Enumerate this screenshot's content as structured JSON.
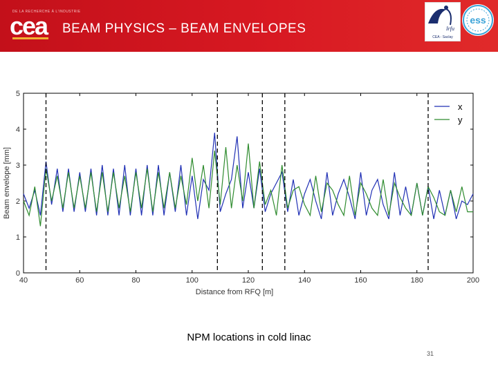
{
  "header": {
    "org_line": "DE LA RECHERCHE À L'INDUSTRIE",
    "logo_text": "cea",
    "title": "BEAM PHYSICS – BEAM ENVELOPES",
    "partner_logo_1": {
      "text": "Irfu",
      "subtext": "CEA - Saclay",
      "icon": "irfu-logo"
    },
    "partner_logo_2": {
      "text": "ess",
      "icon": "ess-logo"
    }
  },
  "caption": "NPM locations in cold linac",
  "page_number": "31",
  "colors": {
    "header_red": "#d81922",
    "series_x": "#1f2fb4",
    "series_y": "#2e8b2e"
  },
  "chart_data": {
    "type": "line",
    "xlabel": "Distance from RFQ [m]",
    "ylabel": "Beam envelope [mm]",
    "xlim": [
      40,
      200
    ],
    "ylim": [
      0,
      5
    ],
    "xticks": [
      40,
      60,
      80,
      100,
      120,
      140,
      160,
      180,
      200
    ],
    "yticks": [
      0,
      1,
      2,
      3,
      4,
      5
    ],
    "legend_position": "top-right",
    "grid": false,
    "vlines": [
      48,
      109,
      125,
      133,
      184
    ],
    "series": [
      {
        "name": "x",
        "color": "#1f2fb4",
        "x": [
          40,
          42,
          44,
          46,
          48,
          50,
          52,
          54,
          56,
          58,
          60,
          62,
          64,
          66,
          68,
          70,
          72,
          74,
          76,
          78,
          80,
          82,
          84,
          86,
          88,
          90,
          92,
          94,
          96,
          98,
          100,
          102,
          104,
          106,
          108,
          110,
          112,
          114,
          116,
          118,
          120,
          122,
          124,
          126,
          128,
          130,
          132,
          134,
          136,
          138,
          140,
          142,
          144,
          146,
          148,
          150,
          152,
          154,
          156,
          158,
          160,
          162,
          164,
          166,
          168,
          170,
          172,
          174,
          176,
          178,
          180,
          182,
          184,
          186,
          188,
          190,
          192,
          194,
          196,
          198,
          200
        ],
        "y": [
          2.2,
          1.8,
          2.3,
          1.6,
          3.1,
          1.9,
          2.9,
          1.7,
          2.9,
          1.7,
          2.8,
          1.7,
          2.9,
          1.6,
          3.0,
          1.6,
          2.9,
          1.6,
          3.0,
          1.6,
          2.9,
          1.6,
          3.0,
          1.6,
          3.0,
          1.6,
          2.8,
          1.7,
          3.0,
          1.6,
          2.7,
          1.5,
          2.6,
          2.3,
          3.9,
          1.7,
          2.2,
          2.6,
          3.8,
          1.8,
          2.8,
          1.8,
          2.9,
          1.7,
          2.2,
          2.5,
          2.8,
          1.7,
          2.6,
          1.6,
          2.2,
          2.6,
          2.0,
          1.5,
          2.8,
          1.6,
          2.2,
          2.6,
          2.1,
          1.5,
          2.8,
          1.6,
          2.3,
          2.6,
          1.9,
          1.5,
          2.8,
          1.6,
          2.4,
          1.6,
          2.5,
          1.6,
          2.4,
          1.5,
          2.3,
          1.6,
          2.3,
          1.5,
          2.0,
          1.9,
          2.2
        ]
      },
      {
        "name": "y",
        "color": "#2e8b2e",
        "x": [
          40,
          42,
          44,
          46,
          48,
          50,
          52,
          54,
          56,
          58,
          60,
          62,
          64,
          66,
          68,
          70,
          72,
          74,
          76,
          78,
          80,
          82,
          84,
          86,
          88,
          90,
          92,
          94,
          96,
          98,
          100,
          102,
          104,
          106,
          108,
          110,
          112,
          114,
          116,
          118,
          120,
          122,
          124,
          126,
          128,
          130,
          132,
          134,
          136,
          138,
          140,
          142,
          144,
          146,
          148,
          150,
          152,
          154,
          156,
          158,
          160,
          162,
          164,
          166,
          168,
          170,
          172,
          174,
          176,
          178,
          180,
          182,
          184,
          186,
          188,
          190,
          192,
          194,
          196,
          198,
          200
        ],
        "y": [
          2.0,
          1.6,
          2.4,
          1.3,
          2.9,
          2.0,
          2.7,
          1.8,
          2.8,
          1.8,
          2.7,
          1.8,
          2.8,
          1.7,
          2.8,
          1.7,
          2.8,
          1.8,
          2.7,
          1.7,
          2.8,
          1.8,
          2.9,
          1.7,
          2.8,
          1.8,
          2.8,
          1.8,
          2.7,
          1.9,
          3.2,
          2.0,
          3.0,
          1.8,
          3.4,
          1.9,
          3.5,
          1.8,
          3.0,
          2.0,
          3.6,
          1.8,
          3.1,
          1.9,
          2.3,
          1.6,
          3.0,
          1.8,
          2.3,
          2.4,
          1.9,
          1.6,
          2.7,
          1.7,
          2.5,
          2.3,
          1.9,
          1.6,
          2.7,
          1.6,
          2.5,
          2.2,
          1.8,
          1.6,
          2.6,
          1.6,
          2.5,
          2.1,
          1.8,
          1.6,
          2.5,
          1.6,
          2.4,
          2.1,
          1.7,
          1.6,
          2.3,
          1.7,
          2.4,
          1.7,
          1.7
        ]
      }
    ]
  }
}
